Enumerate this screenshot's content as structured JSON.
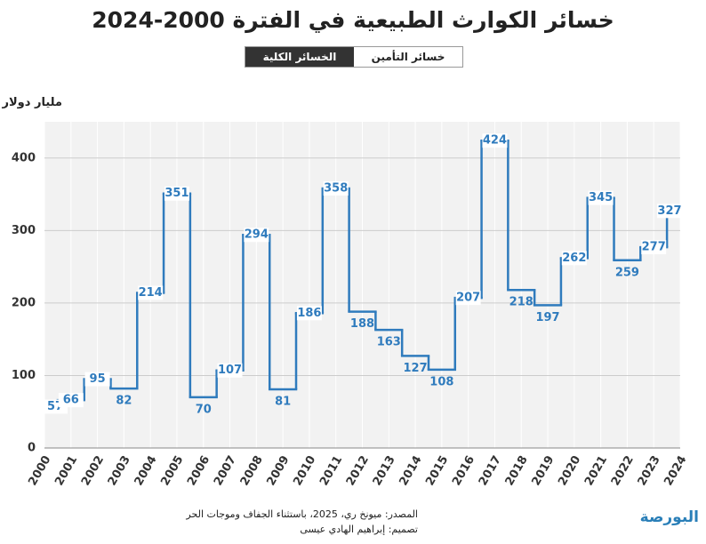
{
  "chart_data": {
    "type": "step",
    "title": "خسائر الكوارث الطبيعية في الفترة 2000-2024",
    "toggle": [
      "خسائر التأمين",
      "الخسائر الكلية"
    ],
    "y_label": "مليار دولار",
    "source": "المصدر: ميونخ ري، 2025، باستثناء الجفاف وموجات الحر",
    "credit": "تصميم: إبراهيم الهادي عيسى",
    "logo": "البورصة",
    "categories": [
      "2000",
      "2001",
      "2002",
      "2003",
      "2004",
      "2005",
      "2006",
      "2007",
      "2008",
      "2009",
      "2010",
      "2011",
      "2012",
      "2013",
      "2014",
      "2015",
      "2016",
      "2017",
      "2018",
      "2019",
      "2020",
      "2021",
      "2022",
      "2023",
      "2024"
    ],
    "values": [
      57,
      66,
      95,
      82,
      214,
      351,
      70,
      107,
      294,
      81,
      186,
      358,
      188,
      163,
      127,
      108,
      207,
      424,
      218,
      197,
      262,
      345,
      259,
      277,
      327
    ],
    "color": "#2f7bbd",
    "ylim": [
      0,
      450
    ],
    "yticks": [
      0,
      100,
      200,
      300,
      400
    ],
    "grid": true
  }
}
